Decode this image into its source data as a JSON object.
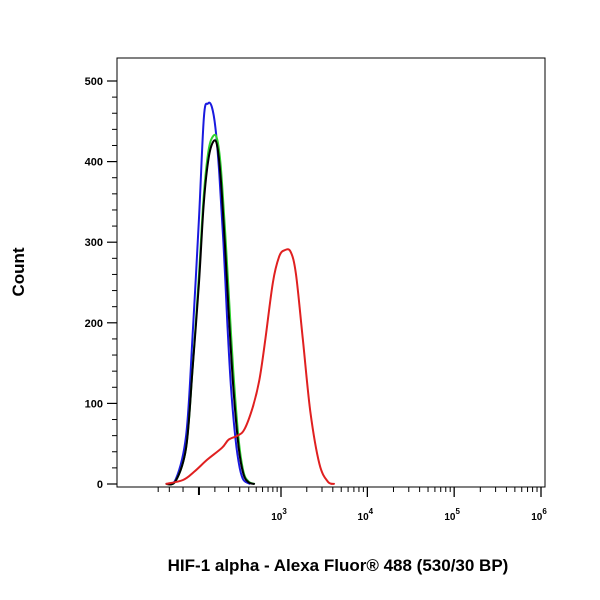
{
  "chart_data": {
    "type": "line",
    "subtype": "flow-cytometry-histogram",
    "xlabel": "HIF-1 alpha - Alexa Fluor® 488 (530/30 BP)",
    "ylabel": "Count",
    "x_scale": "biexponential",
    "xlim": [
      -300,
      1000000
    ],
    "ylim": [
      0,
      520
    ],
    "grid": false,
    "legend": "none",
    "y_ticks": [
      {
        "value": 0,
        "label": "0"
      },
      {
        "value": 100,
        "label": "100"
      },
      {
        "value": 200,
        "label": "200"
      },
      {
        "value": 300,
        "label": "300"
      },
      {
        "value": 400,
        "label": "400"
      },
      {
        "value": 500,
        "label": "500"
      }
    ],
    "x_ticks": [
      {
        "value": 1000,
        "base": "10",
        "exp": "3"
      },
      {
        "value": 10000,
        "base": "10",
        "exp": "4"
      },
      {
        "value": 100000,
        "base": "10",
        "exp": "5"
      },
      {
        "value": 1000000,
        "base": "10",
        "exp": "6"
      }
    ],
    "series": [
      {
        "color": "#1a1adf",
        "points": [
          [
            -230,
            0
          ],
          [
            -150,
            6
          ],
          [
            -80,
            60
          ],
          [
            -40,
            180
          ],
          [
            0,
            330
          ],
          [
            30,
            455
          ],
          [
            55,
            472
          ],
          [
            80,
            468
          ],
          [
            105,
            440
          ],
          [
            130,
            385
          ],
          [
            160,
            300
          ],
          [
            190,
            200
          ],
          [
            220,
            120
          ],
          [
            260,
            55
          ],
          [
            300,
            20
          ],
          [
            340,
            5
          ],
          [
            420,
            0
          ]
        ]
      },
      {
        "color": "#2fd12f",
        "points": [
          [
            -230,
            0
          ],
          [
            -150,
            4
          ],
          [
            -80,
            45
          ],
          [
            -40,
            140
          ],
          [
            0,
            260
          ],
          [
            30,
            360
          ],
          [
            60,
            415
          ],
          [
            90,
            432
          ],
          [
            115,
            428
          ],
          [
            140,
            395
          ],
          [
            170,
            320
          ],
          [
            200,
            240
          ],
          [
            240,
            140
          ],
          [
            290,
            55
          ],
          [
            340,
            15
          ],
          [
            400,
            3
          ],
          [
            480,
            0
          ]
        ]
      },
      {
        "color": "#000000",
        "points": [
          [
            -230,
            0
          ],
          [
            -150,
            4
          ],
          [
            -80,
            45
          ],
          [
            -40,
            140
          ],
          [
            0,
            250
          ],
          [
            30,
            350
          ],
          [
            60,
            405
          ],
          [
            90,
            425
          ],
          [
            115,
            420
          ],
          [
            140,
            380
          ],
          [
            170,
            300
          ],
          [
            200,
            215
          ],
          [
            240,
            120
          ],
          [
            290,
            45
          ],
          [
            340,
            12
          ],
          [
            400,
            2
          ],
          [
            480,
            0
          ]
        ]
      },
      {
        "color": "#e02020",
        "points": [
          [
            -230,
            0
          ],
          [
            -100,
            5
          ],
          [
            -30,
            15
          ],
          [
            50,
            30
          ],
          [
            150,
            45
          ],
          [
            200,
            55
          ],
          [
            280,
            60
          ],
          [
            350,
            68
          ],
          [
            450,
            95
          ],
          [
            550,
            130
          ],
          [
            650,
            180
          ],
          [
            800,
            250
          ],
          [
            950,
            282
          ],
          [
            1100,
            290
          ],
          [
            1300,
            288
          ],
          [
            1500,
            260
          ],
          [
            1800,
            180
          ],
          [
            2200,
            90
          ],
          [
            2800,
            25
          ],
          [
            3500,
            3
          ],
          [
            4200,
            0
          ]
        ]
      }
    ]
  }
}
